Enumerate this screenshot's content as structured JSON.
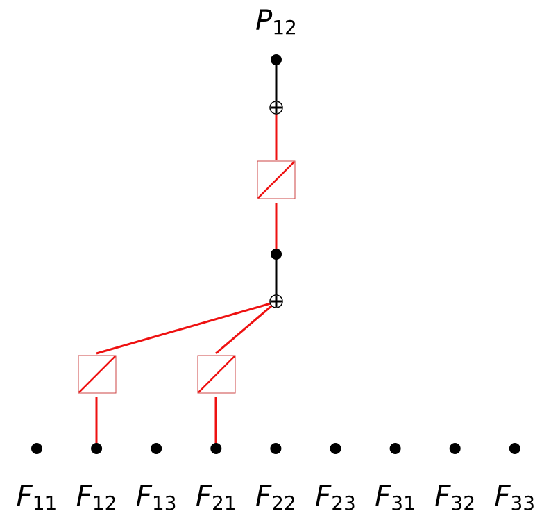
{
  "output": {
    "symbol": "P",
    "subscript": "12"
  },
  "inputs": [
    {
      "symbol": "F",
      "subscript": "11"
    },
    {
      "symbol": "F",
      "subscript": "12"
    },
    {
      "symbol": "F",
      "subscript": "13"
    },
    {
      "symbol": "F",
      "subscript": "21"
    },
    {
      "symbol": "F",
      "subscript": "22"
    },
    {
      "symbol": "F",
      "subscript": "23"
    },
    {
      "symbol": "F",
      "subscript": "31"
    },
    {
      "symbol": "F",
      "subscript": "32"
    },
    {
      "symbol": "F",
      "subscript": "33"
    }
  ],
  "colors": {
    "node": "#000000",
    "edge_active": "#ee1111",
    "edge_plain": "#000000",
    "gate_border": "#cc4444"
  }
}
